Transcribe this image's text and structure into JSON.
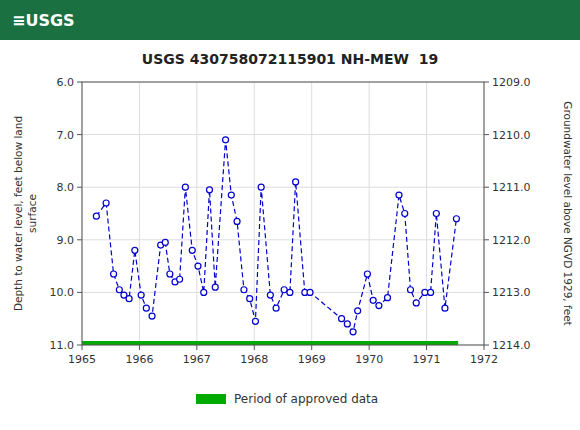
{
  "chart_data": {
    "type": "line",
    "title": "USGS 430758072115901 NH-MEW  19",
    "annotations": [
      "≡USGS"
    ],
    "y_label": "Depth to water level, feet below land\nsurface",
    "y2_label": "Groundwater level above NGVD 1929, feet",
    "color": "#0000cc",
    "marker": "circle",
    "line_style": "dashed",
    "grid": true,
    "legend": "bottom",
    "xlim": [
      1965.0,
      1972.0
    ],
    "xticks": [
      1965,
      1966,
      1967,
      1968,
      1969,
      1970,
      1971,
      1972
    ],
    "ylim": [
      11.0,
      6.0
    ],
    "yticks": [
      {
        "value": 6.0,
        "label": "6.0"
      },
      {
        "value": 7.0,
        "label": "7.0"
      },
      {
        "value": 8.0,
        "label": "8.0"
      },
      {
        "value": 9.0,
        "label": "9.0"
      },
      {
        "value": 10.0,
        "label": "10.0"
      },
      {
        "value": 11.0,
        "label": "11.0"
      }
    ],
    "y2lim": [
      1214.0,
      1209.0
    ],
    "y2ticks": [
      {
        "value": 1214.0,
        "label": "1214.0"
      },
      {
        "value": 1213.0,
        "label": "1213.0"
      },
      {
        "value": 1212.0,
        "label": "1212.0"
      },
      {
        "value": 1211.0,
        "label": "1211.0"
      },
      {
        "value": 1210.0,
        "label": "1210.0"
      },
      {
        "value": 1209.0,
        "label": "1209.0"
      }
    ],
    "approved_period": {
      "name": "Period of approved data",
      "color": "#00aa00",
      "x": [
        1965.0,
        1971.55
      ]
    },
    "x": [
      1965.25,
      1965.42,
      1965.55,
      1965.65,
      1965.73,
      1965.82,
      1965.92,
      1966.03,
      1966.12,
      1966.22,
      1966.37,
      1966.45,
      1966.53,
      1966.62,
      1966.7,
      1966.8,
      1966.92,
      1967.02,
      1967.12,
      1967.22,
      1967.32,
      1967.5,
      1967.6,
      1967.7,
      1967.82,
      1967.92,
      1968.02,
      1968.12,
      1968.28,
      1968.38,
      1968.52,
      1968.62,
      1968.72,
      1968.88,
      1968.97,
      1969.52,
      1969.62,
      1969.72,
      1969.8,
      1969.97,
      1970.07,
      1970.17,
      1970.32,
      1970.52,
      1970.62,
      1970.72,
      1970.82,
      1970.97,
      1971.07,
      1971.17,
      1971.32,
      1971.52
    ],
    "values": [
      8.55,
      8.3,
      9.65,
      9.95,
      10.05,
      10.12,
      9.2,
      10.05,
      10.3,
      10.45,
      9.1,
      9.05,
      9.65,
      9.8,
      9.75,
      8.0,
      9.2,
      9.5,
      10.0,
      8.05,
      9.9,
      7.1,
      8.15,
      8.65,
      9.95,
      10.12,
      10.55,
      8.0,
      10.05,
      10.3,
      9.95,
      10.0,
      7.9,
      10.0,
      10.0,
      10.5,
      10.6,
      10.75,
      10.35,
      9.65,
      10.15,
      10.25,
      10.1,
      8.15,
      8.5,
      9.95,
      10.2,
      10.0,
      10.0,
      8.5,
      10.3,
      8.6
    ]
  }
}
